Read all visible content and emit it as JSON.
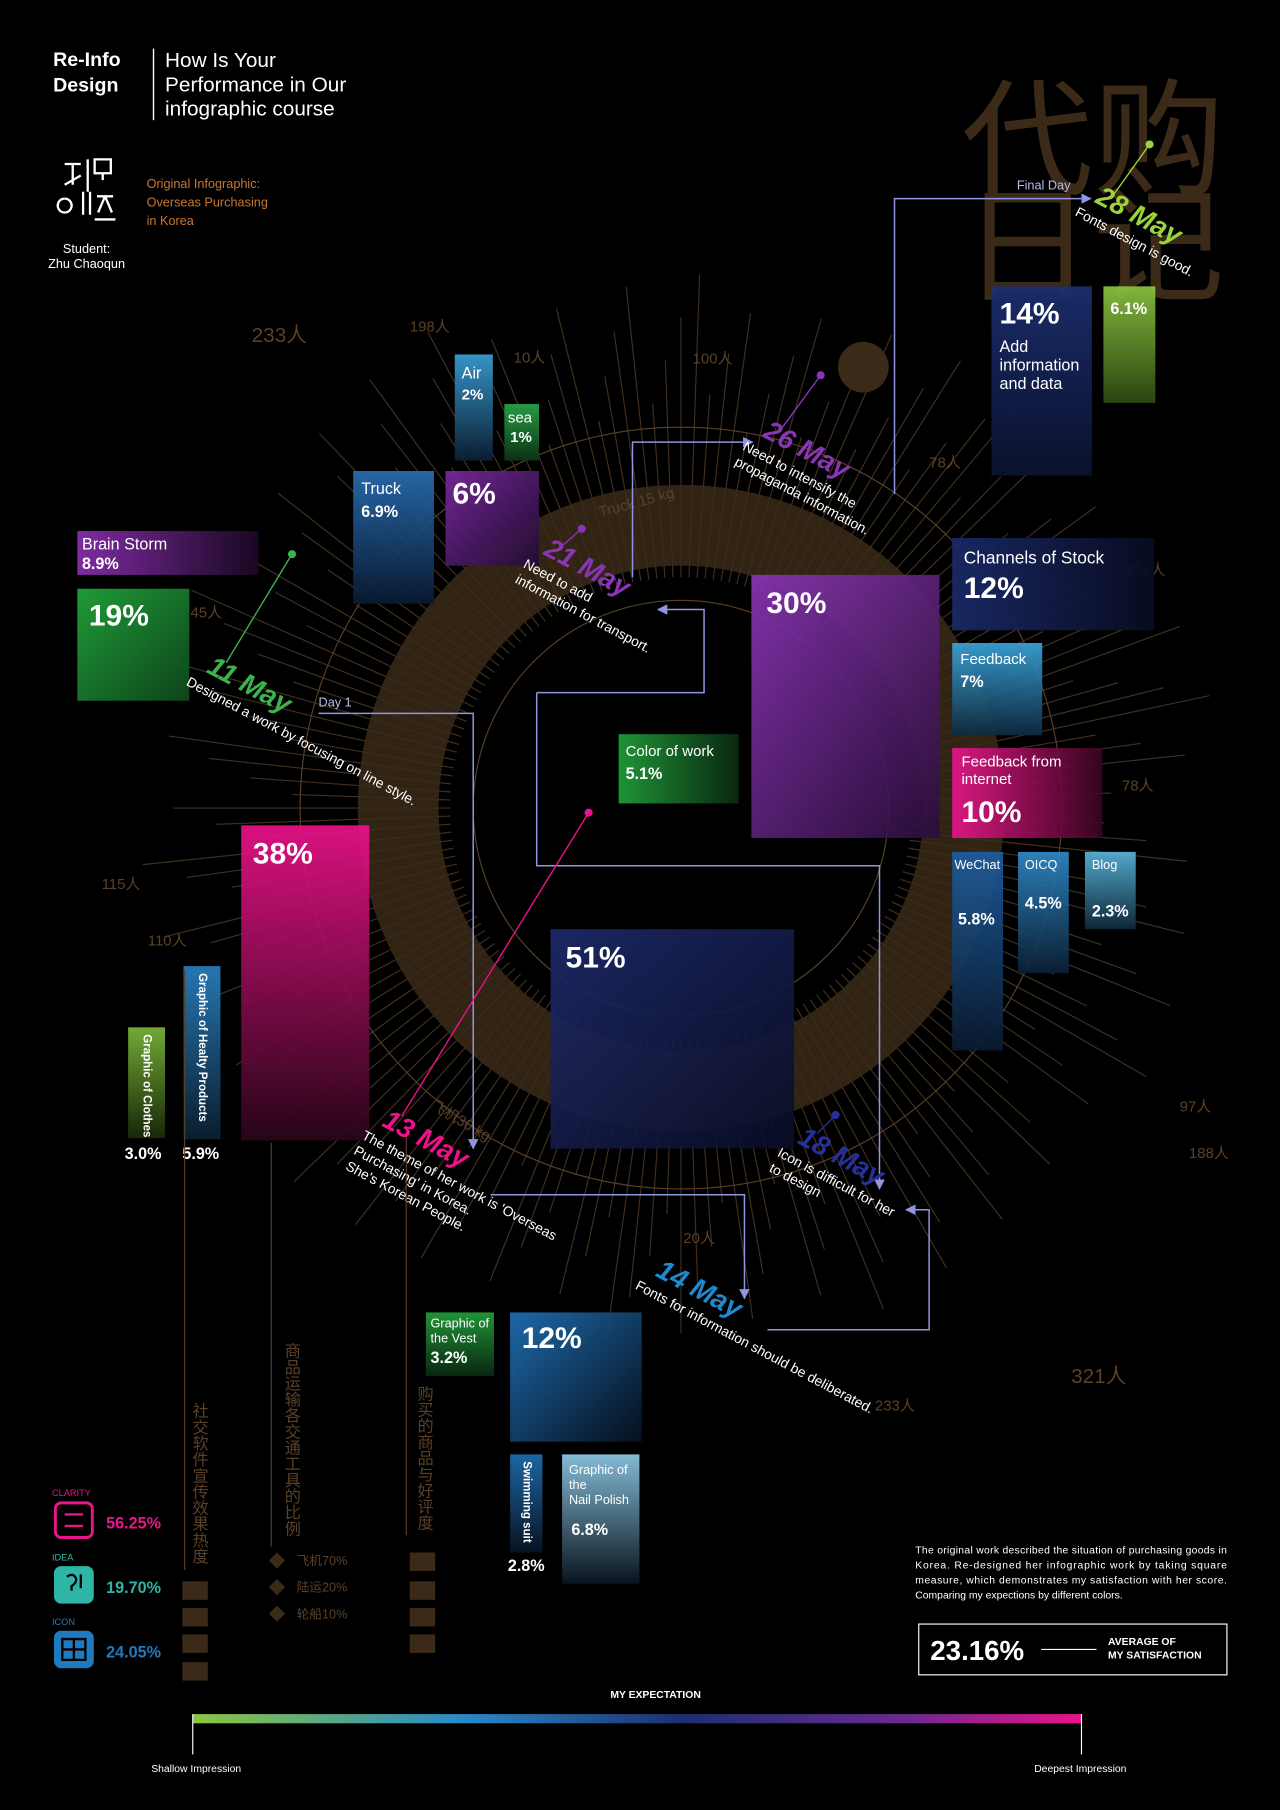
{
  "header": {
    "brand": [
      "Re-Info",
      "Design"
    ],
    "title": [
      "How Is Your",
      "Performance in Our",
      "infographic course"
    ],
    "student": [
      "Student:",
      "Zhu Chaoqun"
    ],
    "original": [
      "Original Infographic:",
      "Overseas Purchasing",
      "in Korea"
    ]
  },
  "watermark": [
    "代购",
    "日记"
  ],
  "background_labels": [
    "233人",
    "198人",
    "10人",
    "100人",
    "78人",
    "156人",
    "78人",
    "45人",
    "115人",
    "110人",
    "97人",
    "188人",
    "321人",
    "233人",
    "20人",
    "Truck 15 kg",
    "飞机30 kg"
  ],
  "boxes": [
    {
      "label": [
        "Brain Storm"
      ],
      "value": "8.9%"
    },
    {
      "label": [],
      "value": "19%"
    },
    {
      "label": [
        "Air"
      ],
      "value": "2%"
    },
    {
      "label": [
        "sea"
      ],
      "value": "1%"
    },
    {
      "label": [
        "Truck"
      ],
      "value": "6.9%"
    },
    {
      "label": [],
      "value": "6%"
    },
    {
      "label": [
        "Add",
        "information",
        "and data"
      ],
      "value": "14%"
    },
    {
      "label": [],
      "value": "6.1%"
    },
    {
      "label": [
        "Channels of Stock"
      ],
      "value": "12%"
    },
    {
      "label": [],
      "value": "30%"
    },
    {
      "label": [
        "Feedback"
      ],
      "value": "7%"
    },
    {
      "label": [
        "Feedback from",
        "internet"
      ],
      "value": "10%"
    },
    {
      "label": [
        "WeChat"
      ],
      "value": "5.8%"
    },
    {
      "label": [
        "OICQ"
      ],
      "value": "4.5%"
    },
    {
      "label": [
        "Blog"
      ],
      "value": "2.3%"
    },
    {
      "label": [
        "Color of work"
      ],
      "value": "5.1%"
    },
    {
      "label": [],
      "value": "38%"
    },
    {
      "label": [
        "Graphic of Clothes"
      ],
      "value": "3.0%"
    },
    {
      "label": [
        "Graphic of Healty Products"
      ],
      "value": "5.9%"
    },
    {
      "label": [],
      "value": "51%"
    },
    {
      "label": [
        "Graphic of",
        "the Vest"
      ],
      "value": "3.2%"
    },
    {
      "label": [],
      "value": "12%"
    },
    {
      "label": [
        "Swimming suit"
      ],
      "value": "2.8%"
    },
    {
      "label": [
        "Graphic of",
        "the",
        "Nail Polish"
      ],
      "value": "6.8%"
    }
  ],
  "timeline": [
    {
      "date": "11 May",
      "note": [
        "Designed a work by focusing on line style."
      ]
    },
    {
      "date": "13 May",
      "note": [
        "The theme of her work is 'Overseas",
        "Purchasing' in Korea.",
        "She's Korean People."
      ]
    },
    {
      "date": "14 May",
      "note": [
        "Fonts for information should be deliberated."
      ]
    },
    {
      "date": "18 May",
      "note": [
        "Icon is difficult for her",
        "to design"
      ]
    },
    {
      "date": "21 May",
      "note": [
        "Need to add",
        "information for transport."
      ]
    },
    {
      "date": "26 May",
      "note": [
        "Need to intensify the",
        "propaganda information."
      ]
    },
    {
      "date": "28 May",
      "note": [
        "Fonts design is good."
      ]
    }
  ],
  "markers": {
    "start": "Day 1",
    "end": "Final Day"
  },
  "legend": [
    {
      "name": "CLARITY",
      "value": "56.25%"
    },
    {
      "name": "IDEA",
      "value": "19.70%"
    },
    {
      "name": "ICON",
      "value": "24.05%"
    }
  ],
  "columns": [
    "社交软件宣传效果热度",
    "商品运输各交通工具的比例",
    "购买的商品与好评度"
  ],
  "transport": [
    "飞机70%",
    "陆运20%",
    "轮船10%"
  ],
  "summary": {
    "text": [
      "The original work described the situation of purchasing goods in",
      "Korea. Re-designed her infographic work by taking square",
      "measure, which demonstrates my satisfaction with her score.",
      "Comparing my expections by different colors."
    ],
    "value": "23.16%",
    "label": [
      "AVERAGE OF",
      "MY SATISFACTION"
    ]
  },
  "scale": {
    "title": "MY EXPECTATION",
    "low": "Shallow Impression",
    "high": "Deepest Impression"
  }
}
